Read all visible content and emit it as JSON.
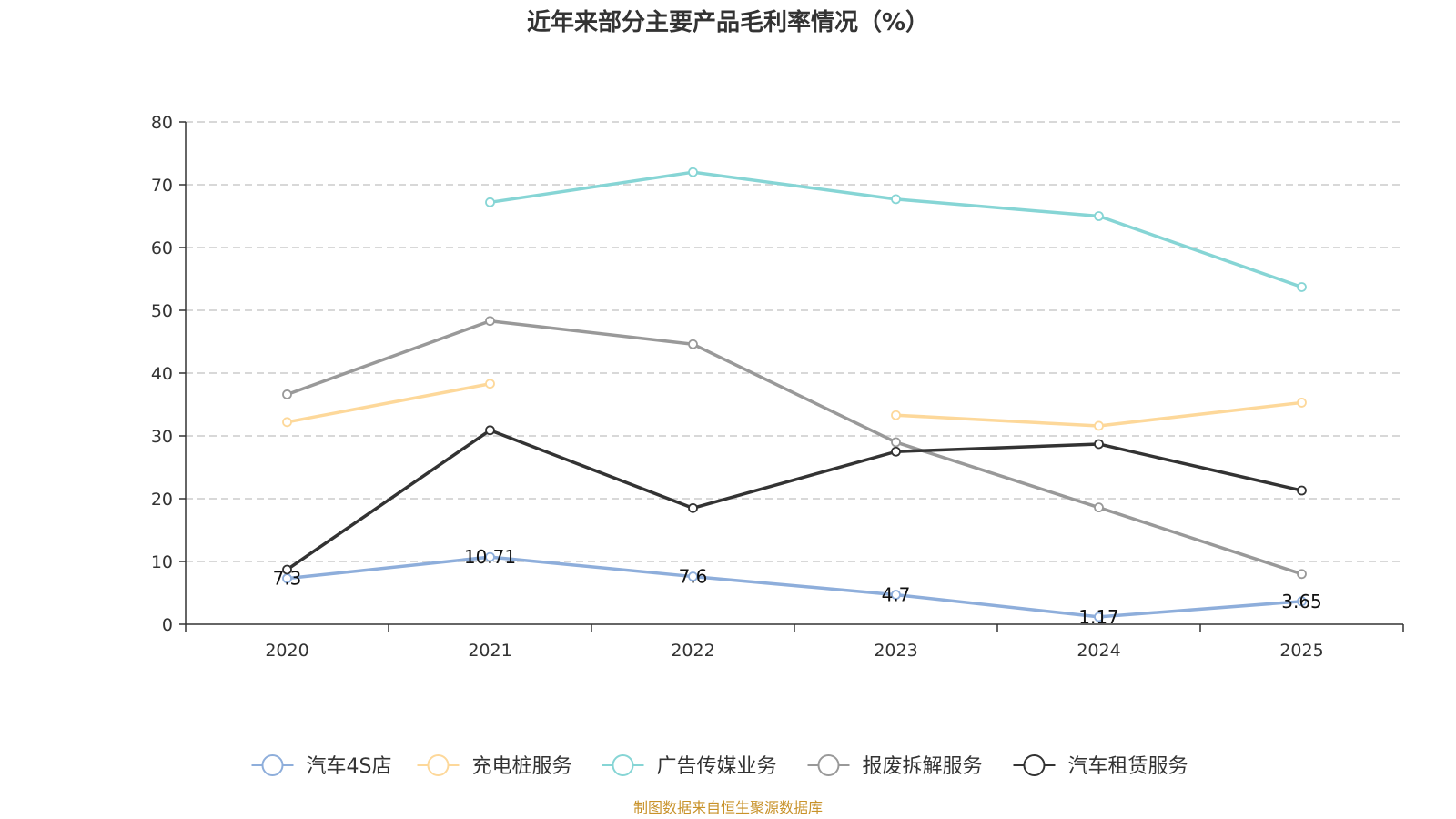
{
  "chart_data": {
    "type": "line",
    "title": "近年来部分主要产品毛利率情况（%）",
    "categories": [
      "2020",
      "2021",
      "2022",
      "2023",
      "2024",
      "2025"
    ],
    "ylim": [
      0,
      80
    ],
    "yticks": [
      0,
      10,
      20,
      30,
      40,
      50,
      60,
      70,
      80
    ],
    "grid": true,
    "legend_position": "bottom",
    "series": [
      {
        "name": "汽车4S店",
        "color": "#8eaedb",
        "values": [
          7.3,
          10.71,
          7.6,
          4.7,
          1.17,
          3.65
        ],
        "labels": [
          "7.3",
          "10.71",
          "7.6",
          "4.7",
          "1.17",
          "3.65"
        ]
      },
      {
        "name": "充电桩服务",
        "color": "#fdd89a",
        "values": [
          32.2,
          38.3,
          null,
          33.3,
          31.6,
          35.3
        ]
      },
      {
        "name": "广告传媒业务",
        "color": "#86d5d5",
        "values": [
          null,
          67.2,
          72.0,
          67.7,
          65.0,
          53.7
        ]
      },
      {
        "name": "报废拆解服务",
        "color": "#999999",
        "values": [
          36.6,
          48.3,
          44.6,
          29.0,
          18.6,
          8.0
        ]
      },
      {
        "name": "汽车租赁服务",
        "color": "#333333",
        "values": [
          8.7,
          30.9,
          18.5,
          27.5,
          28.7,
          21.3
        ]
      }
    ]
  },
  "source_note": "制图数据来自恒生聚源数据库"
}
